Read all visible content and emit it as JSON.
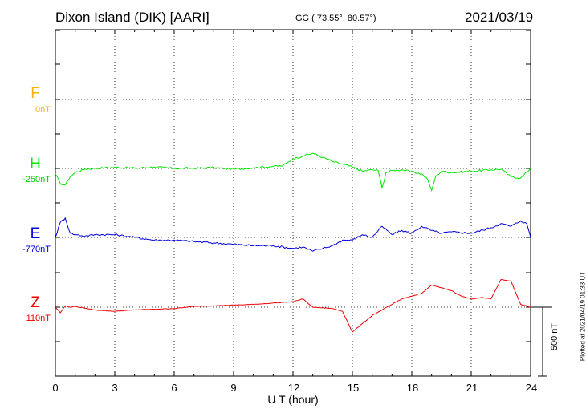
{
  "header": {
    "station": "Dixon Island (DIK)  [AARI]",
    "coordinates": "GG ( 73.55°,  80.57°)",
    "date": "2021/03/19"
  },
  "footer": {
    "plotted": "Plotted at 2021/04/19 01:33 UT"
  },
  "colors": {
    "F": "#ffb300",
    "H": "#00e600",
    "E": "#0000dd",
    "Z": "#ee0000"
  },
  "chart_data": {
    "type": "line",
    "xlabel": "U T (hour)",
    "xlim": [
      0,
      24
    ],
    "xticks": [
      "0",
      "3",
      "6",
      "9",
      "12",
      "15",
      "18",
      "21",
      "24"
    ],
    "scale_bar": "500 nT",
    "components": [
      {
        "name": "F",
        "baseline": "0nT",
        "has_data": false
      },
      {
        "name": "H",
        "baseline": "-250nT",
        "has_data": true
      },
      {
        "name": "E",
        "baseline": "-770nT",
        "has_data": true
      },
      {
        "name": "Z",
        "baseline": "110nT",
        "has_data": true
      }
    ],
    "units": "nT deviation from baseline",
    "series": [
      {
        "name": "H",
        "x": [
          0,
          0.25,
          0.5,
          0.75,
          1,
          1.5,
          2,
          2.5,
          3,
          4,
          5,
          6,
          7,
          8,
          9,
          10,
          11,
          11.5,
          12,
          12.5,
          13,
          13.5,
          14,
          14.5,
          15,
          15.5,
          16,
          16.3,
          16.5,
          16.7,
          17,
          17.5,
          18,
          18.5,
          18.8,
          19,
          19.2,
          19.5,
          20,
          21,
          22,
          22.5,
          23,
          23.5,
          24
        ],
        "y": [
          -40,
          -110,
          -120,
          -60,
          -30,
          -5,
          0,
          5,
          8,
          2,
          10,
          0,
          2,
          5,
          -5,
          5,
          15,
          20,
          70,
          90,
          110,
          80,
          50,
          30,
          10,
          -20,
          -10,
          -15,
          -140,
          -30,
          -15,
          -10,
          -25,
          -40,
          -80,
          -160,
          -60,
          -20,
          -30,
          -20,
          -10,
          -5,
          -60,
          -70,
          0
        ]
      },
      {
        "name": "E",
        "x": [
          0,
          0.25,
          0.5,
          0.75,
          1,
          1.5,
          2,
          3,
          4,
          5,
          6,
          7,
          8,
          9,
          10,
          11,
          12,
          12.5,
          13,
          13.5,
          14,
          14.5,
          15,
          15.5,
          16,
          16.5,
          17,
          17.5,
          18,
          18.5,
          19,
          19.5,
          20,
          21,
          22,
          22.5,
          23,
          23.5,
          23.8,
          24
        ],
        "y": [
          0,
          110,
          140,
          30,
          20,
          10,
          20,
          20,
          0,
          -20,
          -20,
          -30,
          -40,
          -50,
          -60,
          -60,
          -80,
          -70,
          -100,
          -80,
          -60,
          -20,
          -20,
          20,
          0,
          80,
          20,
          50,
          30,
          80,
          50,
          30,
          40,
          30,
          70,
          100,
          80,
          120,
          100,
          0
        ]
      },
      {
        "name": "Z",
        "x": [
          0,
          0.25,
          0.5,
          0.75,
          1,
          2,
          3,
          4,
          5,
          6,
          7,
          8,
          9,
          10,
          11,
          12,
          12.5,
          13,
          14,
          14.5,
          15,
          15.5,
          16,
          16.5,
          17,
          17.5,
          18,
          18.5,
          19,
          19.5,
          20,
          20.5,
          21,
          21.5,
          22,
          22.5,
          23,
          23.5,
          24
        ],
        "y": [
          0,
          -40,
          10,
          0,
          5,
          -20,
          -30,
          -20,
          -15,
          -10,
          5,
          10,
          15,
          20,
          30,
          40,
          60,
          0,
          -10,
          -30,
          -180,
          -120,
          -60,
          -20,
          20,
          60,
          80,
          100,
          160,
          140,
          120,
          80,
          60,
          70,
          60,
          200,
          190,
          20,
          0
        ]
      }
    ]
  }
}
